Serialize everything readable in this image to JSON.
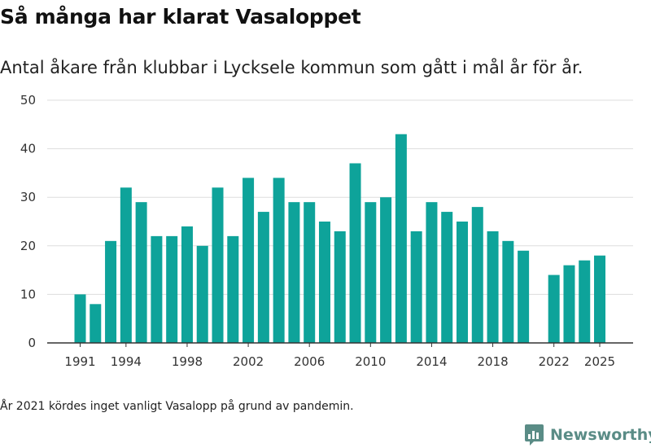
{
  "header": {
    "title": "Så många har klarat Vasaloppet",
    "subtitle": "Antal åkare från klubbar i Lycksele kommun som gått i mål år för år."
  },
  "footer": {
    "note": "År 2021 kördes inget vanligt Vasalopp på grund av pandemin.",
    "brand": "Newsworthy"
  },
  "colors": {
    "bar": "#0ea39a",
    "grid": "#dddddd",
    "axis": "#333333",
    "brand": "#5a8c86"
  },
  "chart_data": {
    "type": "bar",
    "title": "Så många har klarat Vasaloppet",
    "xlabel": "",
    "ylabel": "",
    "ylim": [
      0,
      50
    ],
    "yticks": [
      0,
      10,
      20,
      30,
      40,
      50
    ],
    "xticks": [
      "1991",
      "1994",
      "1998",
      "2002",
      "2006",
      "2010",
      "2014",
      "2018",
      "2022",
      "2025"
    ],
    "categories": [
      "1991",
      "1992",
      "1993",
      "1994",
      "1995",
      "1996",
      "1997",
      "1998",
      "1999",
      "2000",
      "2001",
      "2002",
      "2003",
      "2004",
      "2005",
      "2006",
      "2007",
      "2008",
      "2009",
      "2010",
      "2011",
      "2012",
      "2013",
      "2014",
      "2015",
      "2016",
      "2017",
      "2018",
      "2019",
      "2020",
      "2021",
      "2022",
      "2023",
      "2024",
      "2025"
    ],
    "values": [
      10,
      8,
      21,
      32,
      29,
      22,
      22,
      24,
      20,
      32,
      22,
      34,
      27,
      34,
      29,
      29,
      25,
      23,
      37,
      29,
      30,
      43,
      23,
      29,
      27,
      25,
      28,
      23,
      21,
      19,
      null,
      14,
      16,
      17,
      18
    ],
    "grid": true,
    "legend": "none"
  }
}
